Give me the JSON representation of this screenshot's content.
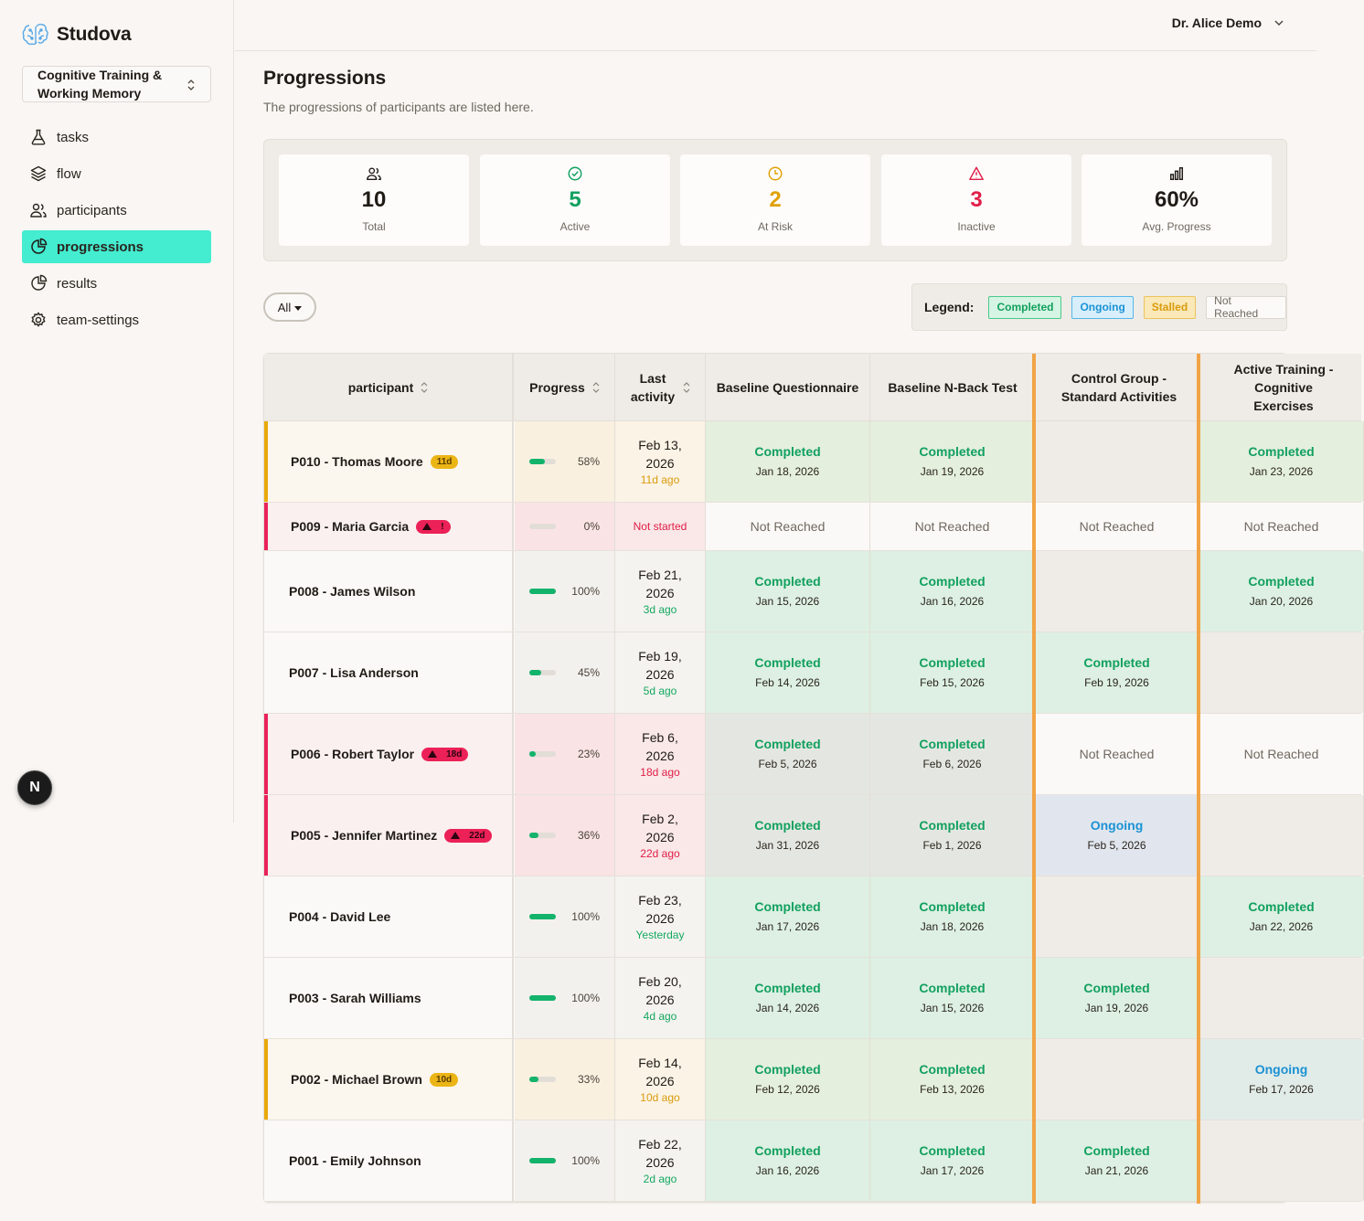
{
  "brand": {
    "name": "Studova"
  },
  "study": {
    "name": "Cognitive Training & Working Memory"
  },
  "nav": [
    {
      "label": "tasks",
      "icon": "flask-icon"
    },
    {
      "label": "flow",
      "icon": "layers-icon"
    },
    {
      "label": "participants",
      "icon": "users-icon"
    },
    {
      "label": "progressions",
      "icon": "pie-chart-icon",
      "active": true
    },
    {
      "label": "results",
      "icon": "pie-chart-icon"
    },
    {
      "label": "team-settings",
      "icon": "gear-icon"
    }
  ],
  "floating_badge": "N",
  "user": {
    "name": "Dr. Alice Demo"
  },
  "page": {
    "title": "Progressions",
    "subtitle": "The progressions of participants are listed here."
  },
  "stats": [
    {
      "value": "10",
      "label": "Total",
      "color": "#1f1b16",
      "icon": "users-icon"
    },
    {
      "value": "5",
      "label": "Active",
      "color": "#12a05f",
      "icon": "check-circle-icon"
    },
    {
      "value": "2",
      "label": "At Risk",
      "color": "#e0a106",
      "icon": "clock-icon"
    },
    {
      "value": "3",
      "label": "Inactive",
      "color": "#e11d48",
      "icon": "alert-triangle-icon"
    },
    {
      "value": "60%",
      "label": "Avg. Progress",
      "color": "#1f1b16",
      "icon": "bar-chart-icon"
    }
  ],
  "filter": {
    "label": "All"
  },
  "legend": {
    "title": "Legend:",
    "items": [
      "Completed",
      "Ongoing",
      "Stalled",
      "Not Reached"
    ]
  },
  "table": {
    "columns": {
      "participant": "participant",
      "progress": "Progress",
      "last_activity": "Last activity",
      "steps": [
        "Baseline Questionnaire",
        "Baseline N-Back Test",
        "Control Group - Standard Activities",
        "Active Training - Cognitive Exercises"
      ]
    },
    "rows": [
      {
        "name": "P010 - Thomas Moore",
        "badge": "11d",
        "badge_type": "amber",
        "flag": "amber",
        "progress": 58,
        "progress_label": "58%",
        "date": "Feb 13, 2026",
        "ago": "11d ago",
        "ago_type": "amber",
        "steps": [
          {
            "status": "Completed",
            "date": "Jan 18, 2026"
          },
          {
            "status": "Completed",
            "date": "Jan 19, 2026"
          },
          {
            "status": "",
            "date": ""
          },
          {
            "status": "Completed",
            "date": "Jan 23, 2026"
          }
        ]
      },
      {
        "name": "P009 - Maria Garcia",
        "badge": "!",
        "badge_type": "red",
        "flag": "red",
        "progress": 0,
        "progress_label": "0%",
        "date": "",
        "ago": "Not started",
        "ago_type": "red",
        "short": true,
        "steps": [
          {
            "status": "Not Reached",
            "date": ""
          },
          {
            "status": "Not Reached",
            "date": ""
          },
          {
            "status": "Not Reached",
            "date": ""
          },
          {
            "status": "Not Reached",
            "date": ""
          }
        ]
      },
      {
        "name": "P008 - James Wilson",
        "badge": "",
        "flag": "",
        "progress": 100,
        "progress_label": "100%",
        "date": "Feb 21, 2026",
        "ago": "3d ago",
        "ago_type": "green",
        "steps": [
          {
            "status": "Completed",
            "date": "Jan 15, 2026"
          },
          {
            "status": "Completed",
            "date": "Jan 16, 2026"
          },
          {
            "status": "",
            "date": ""
          },
          {
            "status": "Completed",
            "date": "Jan 20, 2026"
          }
        ]
      },
      {
        "name": "P007 - Lisa Anderson",
        "badge": "",
        "flag": "",
        "progress": 45,
        "progress_label": "45%",
        "date": "Feb 19, 2026",
        "ago": "5d ago",
        "ago_type": "green",
        "steps": [
          {
            "status": "Completed",
            "date": "Feb 14, 2026"
          },
          {
            "status": "Completed",
            "date": "Feb 15, 2026"
          },
          {
            "status": "Completed",
            "date": "Feb 19, 2026"
          },
          {
            "status": "",
            "date": ""
          }
        ]
      },
      {
        "name": "P006 - Robert Taylor",
        "badge": "18d",
        "badge_type": "red",
        "flag": "red",
        "progress": 23,
        "progress_label": "23%",
        "date": "Feb 6, 2026",
        "ago": "18d ago",
        "ago_type": "red",
        "steps": [
          {
            "status": "Completed",
            "date": "Feb 5, 2026"
          },
          {
            "status": "Completed",
            "date": "Feb 6, 2026"
          },
          {
            "status": "Not Reached",
            "date": ""
          },
          {
            "status": "Not Reached",
            "date": ""
          }
        ]
      },
      {
        "name": "P005 - Jennifer Martinez",
        "badge": "22d",
        "badge_type": "red",
        "flag": "red",
        "progress": 36,
        "progress_label": "36%",
        "date": "Feb 2, 2026",
        "ago": "22d ago",
        "ago_type": "red",
        "steps": [
          {
            "status": "Completed",
            "date": "Jan 31, 2026"
          },
          {
            "status": "Completed",
            "date": "Feb 1, 2026"
          },
          {
            "status": "Ongoing",
            "date": "Feb 5, 2026"
          },
          {
            "status": "",
            "date": ""
          }
        ]
      },
      {
        "name": "P004 - David Lee",
        "badge": "",
        "flag": "",
        "progress": 100,
        "progress_label": "100%",
        "date": "Feb 23, 2026",
        "ago": "Yesterday",
        "ago_type": "green",
        "steps": [
          {
            "status": "Completed",
            "date": "Jan 17, 2026"
          },
          {
            "status": "Completed",
            "date": "Jan 18, 2026"
          },
          {
            "status": "",
            "date": ""
          },
          {
            "status": "Completed",
            "date": "Jan 22, 2026"
          }
        ]
      },
      {
        "name": "P003 - Sarah Williams",
        "badge": "",
        "flag": "",
        "progress": 100,
        "progress_label": "100%",
        "date": "Feb 20, 2026",
        "ago": "4d ago",
        "ago_type": "green",
        "steps": [
          {
            "status": "Completed",
            "date": "Jan 14, 2026"
          },
          {
            "status": "Completed",
            "date": "Jan 15, 2026"
          },
          {
            "status": "Completed",
            "date": "Jan 19, 2026"
          },
          {
            "status": "",
            "date": ""
          }
        ]
      },
      {
        "name": "P002 - Michael Brown",
        "badge": "10d",
        "badge_type": "amber",
        "flag": "amber",
        "progress": 33,
        "progress_label": "33%",
        "date": "Feb 14, 2026",
        "ago": "10d ago",
        "ago_type": "amber",
        "steps": [
          {
            "status": "Completed",
            "date": "Feb 12, 2026"
          },
          {
            "status": "Completed",
            "date": "Feb 13, 2026"
          },
          {
            "status": "",
            "date": ""
          },
          {
            "status": "Ongoing",
            "date": "Feb 17, 2026"
          }
        ]
      },
      {
        "name": "P001 - Emily Johnson",
        "badge": "",
        "flag": "",
        "progress": 100,
        "progress_label": "100%",
        "date": "Feb 22, 2026",
        "ago": "2d ago",
        "ago_type": "green",
        "steps": [
          {
            "status": "Completed",
            "date": "Jan 16, 2026"
          },
          {
            "status": "Completed",
            "date": "Jan 17, 2026"
          },
          {
            "status": "Completed",
            "date": "Jan 21, 2026"
          },
          {
            "status": "",
            "date": ""
          }
        ]
      }
    ]
  }
}
